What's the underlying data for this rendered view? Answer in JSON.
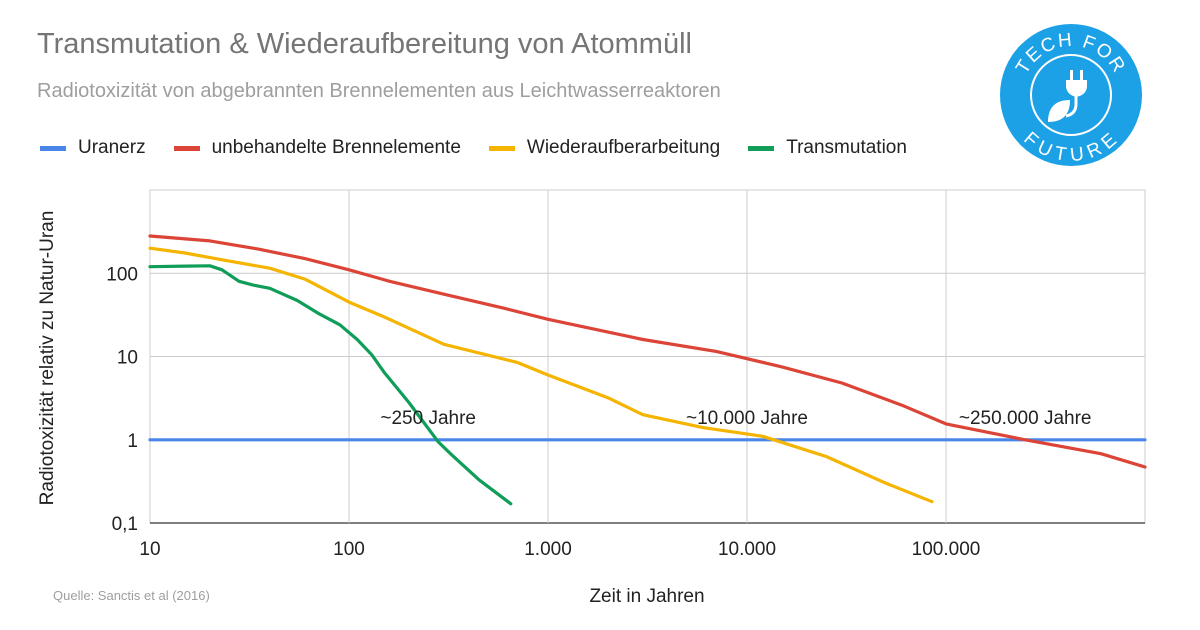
{
  "title": "Transmutation & Wiederaufbereitung von Atommüll",
  "subtitle": "Radiotoxizität von abgebrannten Brennelementen aus Leichtwasserreaktoren",
  "source": "Quelle: Sanctis et al (2016)",
  "logo": {
    "text_top": "TECH FOR",
    "text_bottom": "FUTURE",
    "color": "#1da1e6",
    "icon": "plug-leaf-icon"
  },
  "chart_data": {
    "type": "line",
    "title": "Transmutation & Wiederaufbereitung von Atommüll",
    "subtitle": "Radiotoxizität von abgebrannten Brennelementen aus Leichtwasserreaktoren",
    "xlabel": "Zeit in Jahren",
    "ylabel": "Radiotoxizität relativ zu Natur-Uran",
    "x_scale": "log",
    "y_scale": "log",
    "xlim": [
      10,
      1000000
    ],
    "ylim": [
      0.1,
      1000
    ],
    "grid": true,
    "legend_position": "top",
    "x_ticks": [
      {
        "value": 10,
        "label": "10"
      },
      {
        "value": 100,
        "label": "100"
      },
      {
        "value": 1000,
        "label": "1.000"
      },
      {
        "value": 10000,
        "label": "10.000"
      },
      {
        "value": 100000,
        "label": "100.000"
      }
    ],
    "y_ticks": [
      {
        "value": 0.1,
        "label": "0,1"
      },
      {
        "value": 1,
        "label": "1"
      },
      {
        "value": 10,
        "label": "10"
      },
      {
        "value": 100,
        "label": "100"
      }
    ],
    "series": [
      {
        "name": "Uranerz",
        "color": "#4a86e8",
        "x": [
          10,
          1000000
        ],
        "y": [
          1,
          1
        ]
      },
      {
        "name": "unbehandelte Brennelemente",
        "color": "#db4437",
        "x": [
          10,
          20,
          35,
          60,
          100,
          160,
          300,
          600,
          1000,
          3000,
          7000,
          15000,
          30000,
          60000,
          100000,
          250000,
          600000,
          1000000
        ],
        "y": [
          280,
          245,
          195,
          150,
          110,
          80,
          56,
          38,
          28,
          16,
          11.5,
          7.5,
          4.8,
          2.6,
          1.55,
          1.0,
          0.68,
          0.47
        ]
      },
      {
        "name": "Wiederaufberarbeitung",
        "color": "#f4b400",
        "x": [
          10,
          15,
          25,
          40,
          60,
          100,
          150,
          300,
          700,
          1000,
          2000,
          3000,
          6000,
          12000,
          25000,
          50000,
          85000
        ],
        "y": [
          200,
          175,
          140,
          115,
          85,
          45,
          30,
          14,
          8.5,
          6,
          3.2,
          2,
          1.4,
          1.1,
          0.63,
          0.3,
          0.18
        ]
      },
      {
        "name": "Transmutation",
        "color": "#0f9d58",
        "x": [
          10,
          15,
          20,
          23,
          28,
          33,
          40,
          55,
          70,
          90,
          110,
          130,
          150,
          200,
          280,
          330,
          450,
          650
        ],
        "y": [
          120,
          122,
          123,
          110,
          80,
          72,
          66,
          47,
          33,
          24,
          16,
          10.5,
          6.5,
          2.8,
          0.95,
          0.65,
          0.33,
          0.17
        ]
      }
    ],
    "annotations": [
      {
        "text": "~250 Jahre",
        "x": 250,
        "y": 2.2
      },
      {
        "text": "~10.000 Jahre",
        "x": 10000,
        "y": 2.2
      },
      {
        "text": "~250.000 Jahre",
        "x": 250000,
        "y": 2.2
      }
    ]
  }
}
